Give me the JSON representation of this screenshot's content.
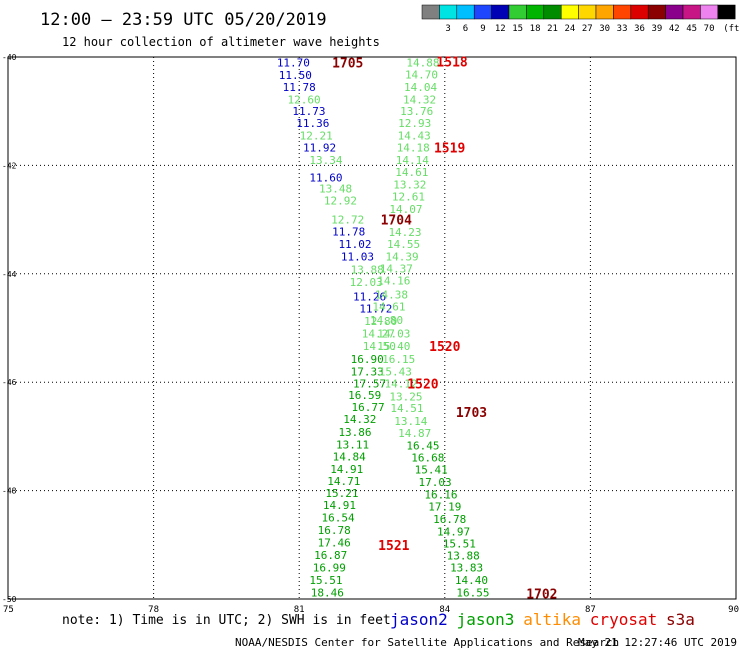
{
  "header": {
    "title": "12:00 – 23:59 UTC 05/20/2019",
    "subtitle": "12 hour collection of altimeter wave heights"
  },
  "legend": {
    "swatches": [
      {
        "label": "",
        "color": "#808080"
      },
      {
        "label": "3",
        "color": "#00e4e4"
      },
      {
        "label": "6",
        "color": "#00bfff"
      },
      {
        "label": "9",
        "color": "#1e46ff"
      },
      {
        "label": "12",
        "color": "#0000b4"
      },
      {
        "label": "15",
        "color": "#32cd32"
      },
      {
        "label": "18",
        "color": "#00b400"
      },
      {
        "label": "21",
        "color": "#008c00"
      },
      {
        "label": "24",
        "color": "#ffff00"
      },
      {
        "label": "27",
        "color": "#ffd700"
      },
      {
        "label": "30",
        "color": "#ffa500"
      },
      {
        "label": "33",
        "color": "#ff4500"
      },
      {
        "label": "36",
        "color": "#dc0000"
      },
      {
        "label": "39",
        "color": "#8b0000"
      },
      {
        "label": "42",
        "color": "#8b008b"
      },
      {
        "label": "45",
        "color": "#c71585"
      },
      {
        "label": "70",
        "color": "#ee82ee"
      },
      {
        "label": "",
        "color": "#000000"
      }
    ],
    "unit": "(ft)"
  },
  "footer": {
    "note": "note: 1) Time is in UTC; 2) SWH is in feet",
    "satellites": [
      {
        "name": "jason2",
        "color": "#0000c8"
      },
      {
        "name": "jason3",
        "color": "#00a000"
      },
      {
        "name": "altika",
        "color": "#ff8c00"
      },
      {
        "name": "cryosat",
        "color": "#e00000"
      },
      {
        "name": "s3a",
        "color": "#8b0000"
      }
    ],
    "credit": "NOAA/NESDIS Center for Satellite Applications and Research",
    "timestamp": "May 21 12:27:46 UTC 2019"
  },
  "chart_data": {
    "type": "scatter",
    "xlim": [
      75,
      90
    ],
    "ylim": [
      -50,
      -40
    ],
    "x_ticks": [
      75,
      78,
      81,
      84,
      87,
      90
    ],
    "y_ticks": [
      -40,
      -42,
      -44,
      -46,
      -48,
      -50
    ],
    "x_tick_labels": [
      "75",
      "78",
      "81",
      "84",
      "87",
      "90"
    ],
    "y_tick_labels": [
      "-40",
      "-42",
      "-44",
      "-46",
      "-48",
      "-50"
    ],
    "grid": true,
    "colors": {
      "jason2": "#0000c8",
      "jason3_light": "#66dd66",
      "jason3_dark": "#00a000",
      "cryosat": "#e00000",
      "s3a": "#8b0000"
    },
    "series": [
      {
        "name": "jason2",
        "color": "#0000c8",
        "points": [
          {
            "x": 80.88,
            "y": -40.1,
            "label": "11.70"
          },
          {
            "x": 80.92,
            "y": -40.33,
            "label": "11.50"
          },
          {
            "x": 81.0,
            "y": -40.55,
            "label": "11.78"
          },
          {
            "x": 81.2,
            "y": -41.0,
            "label": "11.73"
          },
          {
            "x": 81.28,
            "y": -41.22,
            "label": "11.36"
          },
          {
            "x": 81.42,
            "y": -41.67,
            "label": "11.92"
          },
          {
            "x": 81.55,
            "y": -42.22,
            "label": "11.60"
          },
          {
            "x": 82.02,
            "y": -43.22,
            "label": "11.78"
          },
          {
            "x": 82.15,
            "y": -43.45,
            "label": "11.02"
          },
          {
            "x": 82.2,
            "y": -43.68,
            "label": "11.03"
          },
          {
            "x": 82.45,
            "y": -44.42,
            "label": "11.26"
          },
          {
            "x": 82.58,
            "y": -44.64,
            "label": "11.72"
          }
        ]
      },
      {
        "name": "jason3 (first pass)",
        "color": "#66dd66",
        "points": [
          {
            "x": 81.1,
            "y": -40.78,
            "label": "12.60"
          },
          {
            "x": 81.35,
            "y": -41.45,
            "label": "12.21"
          },
          {
            "x": 81.55,
            "y": -41.9,
            "label": "13.34"
          },
          {
            "x": 81.75,
            "y": -42.43,
            "label": "13.48"
          },
          {
            "x": 81.85,
            "y": -42.65,
            "label": "12.92"
          },
          {
            "x": 82.0,
            "y": -43.0,
            "label": "12.72"
          },
          {
            "x": 82.4,
            "y": -43.92,
            "label": "13.88"
          },
          {
            "x": 82.38,
            "y": -44.15,
            "label": "12.03"
          },
          {
            "x": 82.68,
            "y": -44.87,
            "label": "12.80"
          },
          {
            "x": 82.63,
            "y": -45.1,
            "label": "14.27"
          },
          {
            "x": 82.65,
            "y": -45.33,
            "label": "14.50"
          }
        ]
      },
      {
        "name": "jason3 (first pass, lower)",
        "color": "#00a000",
        "points": [
          {
            "x": 82.4,
            "y": -45.57,
            "label": "16.90"
          },
          {
            "x": 82.4,
            "y": -45.8,
            "label": "17.33"
          },
          {
            "x": 82.45,
            "y": -46.02,
            "label": "17.57"
          },
          {
            "x": 82.35,
            "y": -46.24,
            "label": "16.59"
          },
          {
            "x": 82.42,
            "y": -46.46,
            "label": "16.77"
          },
          {
            "x": 82.25,
            "y": -46.68,
            "label": "14.32"
          },
          {
            "x": 82.15,
            "y": -46.92,
            "label": "13.86"
          },
          {
            "x": 82.1,
            "y": -47.15,
            "label": "13.11"
          },
          {
            "x": 82.03,
            "y": -47.37,
            "label": "14.84"
          },
          {
            "x": 81.98,
            "y": -47.6,
            "label": "14.91"
          },
          {
            "x": 81.92,
            "y": -47.82,
            "label": "14.71"
          },
          {
            "x": 81.88,
            "y": -48.04,
            "label": "15.21"
          },
          {
            "x": 81.83,
            "y": -48.27,
            "label": "14.91"
          },
          {
            "x": 81.8,
            "y": -48.5,
            "label": "16.54"
          },
          {
            "x": 81.72,
            "y": -48.73,
            "label": "16.78"
          },
          {
            "x": 81.72,
            "y": -48.96,
            "label": "17.46"
          },
          {
            "x": 81.65,
            "y": -49.19,
            "label": "16.87"
          },
          {
            "x": 81.62,
            "y": -49.42,
            "label": "16.99"
          },
          {
            "x": 81.55,
            "y": -49.65,
            "label": "15.51"
          },
          {
            "x": 81.58,
            "y": -49.88,
            "label": "18.46"
          }
        ]
      },
      {
        "name": "jason3 (second pass)",
        "color": "#66dd66",
        "points": [
          {
            "x": 83.55,
            "y": -40.1,
            "label": "14.88"
          },
          {
            "x": 83.52,
            "y": -40.32,
            "label": "14.70"
          },
          {
            "x": 83.5,
            "y": -40.55,
            "label": "14.04"
          },
          {
            "x": 83.48,
            "y": -40.78,
            "label": "14.32"
          },
          {
            "x": 83.42,
            "y": -41.0,
            "label": "13.76"
          },
          {
            "x": 83.38,
            "y": -41.22,
            "label": "12.93"
          },
          {
            "x": 83.37,
            "y": -41.45,
            "label": "14.43"
          },
          {
            "x": 83.35,
            "y": -41.67,
            "label": "14.18"
          },
          {
            "x": 83.33,
            "y": -41.9,
            "label": "14.14"
          },
          {
            "x": 83.32,
            "y": -42.12,
            "label": "14.61"
          },
          {
            "x": 83.28,
            "y": -42.35,
            "label": "13.32"
          },
          {
            "x": 83.25,
            "y": -42.57,
            "label": "12.61"
          },
          {
            "x": 83.2,
            "y": -42.8,
            "label": "14.07"
          },
          {
            "x": 83.18,
            "y": -43.23,
            "label": "14.23"
          },
          {
            "x": 83.15,
            "y": -43.45,
            "label": "14.55"
          },
          {
            "x": 83.12,
            "y": -43.68,
            "label": "14.39"
          },
          {
            "x": 83.0,
            "y": -43.9,
            "label": "14.37"
          },
          {
            "x": 82.95,
            "y": -44.12,
            "label": "14.16"
          },
          {
            "x": 82.9,
            "y": -44.38,
            "label": "14.38"
          },
          {
            "x": 82.85,
            "y": -44.6,
            "label": "14.61"
          },
          {
            "x": 82.8,
            "y": -44.85,
            "label": "14.80"
          },
          {
            "x": 82.95,
            "y": -45.1,
            "label": "14.03"
          },
          {
            "x": 82.95,
            "y": -45.33,
            "label": "15.40"
          },
          {
            "x": 83.05,
            "y": -45.57,
            "label": "16.15"
          },
          {
            "x": 82.98,
            "y": -45.8,
            "label": "15.43"
          },
          {
            "x": 83.1,
            "y": -46.02,
            "label": "14.12"
          },
          {
            "x": 83.2,
            "y": -46.26,
            "label": "13.25"
          },
          {
            "x": 83.22,
            "y": -46.48,
            "label": "14.51"
          },
          {
            "x": 83.3,
            "y": -46.72,
            "label": "13.14"
          },
          {
            "x": 83.38,
            "y": -46.94,
            "label": "14.87"
          }
        ]
      },
      {
        "name": "jason3 (second pass, lower)",
        "color": "#00a000",
        "points": [
          {
            "x": 83.55,
            "y": -47.17,
            "label": "16.45"
          },
          {
            "x": 83.65,
            "y": -47.39,
            "label": "16.68"
          },
          {
            "x": 83.72,
            "y": -47.61,
            "label": "15.41"
          },
          {
            "x": 83.8,
            "y": -47.84,
            "label": "17.03"
          },
          {
            "x": 83.92,
            "y": -48.07,
            "label": "16.16"
          },
          {
            "x": 84.0,
            "y": -48.29,
            "label": "17.19"
          },
          {
            "x": 84.1,
            "y": -48.52,
            "label": "16.78"
          },
          {
            "x": 84.18,
            "y": -48.75,
            "label": "14.97"
          },
          {
            "x": 84.3,
            "y": -48.98,
            "label": "15.51"
          },
          {
            "x": 84.38,
            "y": -49.2,
            "label": "13.88"
          },
          {
            "x": 84.45,
            "y": -49.42,
            "label": "13.83"
          },
          {
            "x": 84.55,
            "y": -49.65,
            "label": "14.40"
          },
          {
            "x": 84.58,
            "y": -49.88,
            "label": "16.55"
          }
        ]
      }
    ],
    "pass_labels": [
      {
        "text": "1705",
        "x": 82.0,
        "y": -40.1,
        "color": "#8b0000"
      },
      {
        "text": "1518",
        "x": 84.15,
        "y": -40.08,
        "color": "#e00000"
      },
      {
        "text": "1519",
        "x": 84.1,
        "y": -41.67,
        "color": "#e00000"
      },
      {
        "text": "1704",
        "x": 83.0,
        "y": -43.0,
        "color": "#8b0000"
      },
      {
        "text": "1520",
        "x": 84.0,
        "y": -45.33,
        "color": "#e00000"
      },
      {
        "text": "1520",
        "x": 83.55,
        "y": -46.02,
        "color": "#e00000"
      },
      {
        "text": "1703",
        "x": 84.55,
        "y": -46.55,
        "color": "#8b0000"
      },
      {
        "text": "1521",
        "x": 82.95,
        "y": -49.0,
        "color": "#e00000"
      },
      {
        "text": "1702",
        "x": 86.0,
        "y": -49.9,
        "color": "#8b0000"
      }
    ]
  }
}
